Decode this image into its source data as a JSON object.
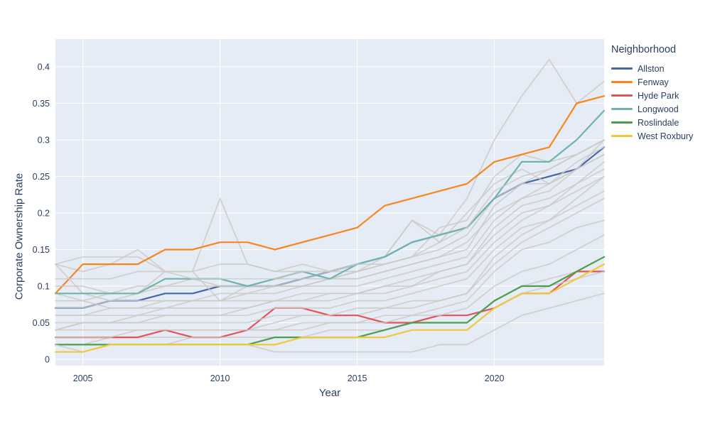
{
  "chart_data": {
    "type": "line",
    "title": "",
    "xlabel": "Year",
    "ylabel": "Corporate Ownership Rate",
    "legend_title": "Neighborhood",
    "plot_bg": "#e5ecf6",
    "grid_color": "#ffffff",
    "text_color": "#2a3f5f",
    "xlim": [
      2004,
      2024
    ],
    "ylim": [
      -0.009,
      0.438
    ],
    "x": [
      2004,
      2005,
      2006,
      2007,
      2008,
      2009,
      2010,
      2011,
      2012,
      2013,
      2014,
      2015,
      2016,
      2017,
      2018,
      2019,
      2020,
      2021,
      2022,
      2023,
      2024
    ],
    "x_tick_values": [
      2005,
      2010,
      2015,
      2020
    ],
    "x_tick_labels": [
      "2005",
      "2010",
      "2015",
      "2020"
    ],
    "y_tick_values": [
      0,
      0.05,
      0.1,
      0.15,
      0.2,
      0.25,
      0.3,
      0.35,
      0.4
    ],
    "y_tick_labels": [
      "0",
      "0.05",
      "0.1",
      "0.15",
      "0.2",
      "0.25",
      "0.3",
      "0.35",
      "0.4"
    ],
    "series": [
      {
        "name": "Allston",
        "color": "#4668a8",
        "values": [
          0.07,
          0.07,
          0.08,
          0.08,
          0.09,
          0.09,
          0.1,
          0.1,
          0.1,
          0.11,
          0.12,
          0.13,
          0.14,
          0.16,
          0.17,
          0.18,
          0.22,
          0.24,
          0.25,
          0.26,
          0.29
        ]
      },
      {
        "name": "Fenway",
        "color": "#f7871d",
        "values": [
          0.09,
          0.13,
          0.13,
          0.13,
          0.15,
          0.15,
          0.16,
          0.16,
          0.15,
          0.16,
          0.17,
          0.18,
          0.21,
          0.22,
          0.23,
          0.24,
          0.27,
          0.28,
          0.29,
          0.35,
          0.36
        ]
      },
      {
        "name": "Hyde Park",
        "color": "#e4535a",
        "values": [
          0.03,
          0.03,
          0.03,
          0.03,
          0.04,
          0.03,
          0.03,
          0.04,
          0.07,
          0.07,
          0.06,
          0.06,
          0.05,
          0.05,
          0.06,
          0.06,
          0.07,
          0.09,
          0.09,
          0.12,
          0.12
        ]
      },
      {
        "name": "Longwood",
        "color": "#6fb3ae",
        "values": [
          0.09,
          0.09,
          0.09,
          0.09,
          0.11,
          0.11,
          0.11,
          0.1,
          0.11,
          0.12,
          0.11,
          0.13,
          0.14,
          0.16,
          0.17,
          0.18,
          0.22,
          0.27,
          0.27,
          0.3,
          0.34
        ]
      },
      {
        "name": "Roslindale",
        "color": "#4d9e4a",
        "values": [
          0.02,
          0.02,
          0.02,
          0.02,
          0.02,
          0.02,
          0.02,
          0.02,
          0.03,
          0.03,
          0.03,
          0.03,
          0.04,
          0.05,
          0.05,
          0.05,
          0.08,
          0.1,
          0.1,
          0.12,
          0.14
        ]
      },
      {
        "name": "West Roxbury",
        "color": "#f2c83b",
        "values": [
          0.01,
          0.01,
          0.02,
          0.02,
          0.02,
          0.02,
          0.02,
          0.02,
          0.02,
          0.03,
          0.03,
          0.03,
          0.03,
          0.04,
          0.04,
          0.04,
          0.07,
          0.09,
          0.09,
          0.11,
          0.13
        ]
      }
    ],
    "others": {
      "color": "#cbc8c2",
      "series": [
        [
          0.13,
          0.12,
          0.13,
          0.15,
          0.12,
          0.12,
          0.22,
          0.13,
          0.12,
          0.13,
          0.12,
          0.13,
          0.14,
          0.19,
          0.17,
          0.22,
          0.3,
          0.36,
          0.41,
          0.35,
          0.38
        ],
        [
          0.13,
          0.14,
          0.14,
          0.14,
          0.12,
          0.12,
          0.13,
          0.13,
          0.12,
          0.12,
          0.11,
          0.12,
          0.13,
          0.14,
          0.18,
          0.19,
          0.25,
          0.28,
          0.27,
          0.28,
          0.3
        ],
        [
          0.09,
          0.08,
          0.09,
          0.1,
          0.1,
          0.11,
          0.1,
          0.1,
          0.11,
          0.11,
          0.12,
          0.12,
          0.13,
          0.14,
          0.15,
          0.17,
          0.22,
          0.24,
          0.24,
          0.26,
          0.3
        ],
        [
          0.04,
          0.05,
          0.05,
          0.05,
          0.06,
          0.06,
          0.06,
          0.07,
          0.08,
          0.08,
          0.08,
          0.09,
          0.09,
          0.1,
          0.12,
          0.13,
          0.18,
          0.21,
          0.22,
          0.24,
          0.26
        ],
        [
          0.02,
          0.02,
          0.03,
          0.03,
          0.03,
          0.03,
          0.03,
          0.04,
          0.04,
          0.05,
          0.05,
          0.05,
          0.06,
          0.06,
          0.07,
          0.08,
          0.12,
          0.15,
          0.16,
          0.18,
          0.19
        ],
        [
          0.04,
          0.04,
          0.04,
          0.04,
          0.04,
          0.04,
          0.04,
          0.04,
          0.05,
          0.06,
          0.06,
          0.06,
          0.07,
          0.08,
          0.08,
          0.09,
          0.13,
          0.16,
          0.18,
          0.2,
          0.22
        ],
        [
          0.06,
          0.06,
          0.07,
          0.07,
          0.08,
          0.08,
          0.08,
          0.09,
          0.1,
          0.1,
          0.11,
          0.12,
          0.14,
          0.19,
          0.16,
          0.2,
          0.24,
          0.26,
          0.24,
          0.26,
          0.28
        ],
        [
          0.02,
          0.02,
          0.02,
          0.02,
          0.02,
          0.03,
          0.03,
          0.03,
          0.03,
          0.03,
          0.04,
          0.04,
          0.04,
          0.05,
          0.05,
          0.05,
          0.08,
          0.1,
          0.11,
          0.12,
          0.14
        ],
        [
          0.05,
          0.05,
          0.05,
          0.06,
          0.06,
          0.06,
          0.06,
          0.06,
          0.07,
          0.07,
          0.07,
          0.08,
          0.08,
          0.09,
          0.1,
          0.11,
          0.15,
          0.18,
          0.19,
          0.22,
          0.25
        ],
        [
          0.1,
          0.1,
          0.09,
          0.09,
          0.1,
          0.1,
          0.1,
          0.1,
          0.1,
          0.11,
          0.11,
          0.11,
          0.12,
          0.13,
          0.14,
          0.16,
          0.2,
          0.22,
          0.23,
          0.26,
          0.28
        ],
        [
          0.07,
          0.07,
          0.08,
          0.08,
          0.08,
          0.08,
          0.09,
          0.09,
          0.09,
          0.1,
          0.1,
          0.1,
          0.11,
          0.12,
          0.13,
          0.14,
          0.19,
          0.22,
          0.24,
          0.27,
          0.29
        ],
        [
          0.13,
          0.09,
          0.08,
          0.09,
          0.12,
          0.12,
          0.08,
          0.1,
          0.1,
          0.1,
          0.11,
          0.11,
          0.12,
          0.13,
          0.14,
          0.15,
          0.21,
          0.24,
          0.26,
          0.28,
          0.3
        ],
        [
          0.03,
          0.03,
          0.03,
          0.04,
          0.04,
          0.04,
          0.04,
          0.04,
          0.04,
          0.04,
          0.05,
          0.05,
          0.05,
          0.06,
          0.06,
          0.07,
          0.1,
          0.12,
          0.13,
          0.15,
          0.17
        ],
        [
          0.08,
          0.08,
          0.07,
          0.07,
          0.07,
          0.08,
          0.08,
          0.08,
          0.08,
          0.09,
          0.09,
          0.09,
          0.1,
          0.11,
          0.12,
          0.13,
          0.17,
          0.2,
          0.21,
          0.23,
          0.25
        ],
        [
          0.06,
          0.06,
          0.06,
          0.06,
          0.07,
          0.07,
          0.07,
          0.07,
          0.08,
          0.08,
          0.09,
          0.09,
          0.1,
          0.1,
          0.11,
          0.12,
          0.16,
          0.19,
          0.21,
          0.24,
          0.27
        ],
        [
          0.02,
          0.02,
          0.02,
          0.02,
          0.02,
          0.02,
          0.02,
          0.02,
          0.03,
          0.03,
          0.03,
          0.03,
          0.03,
          0.04,
          0.04,
          0.04,
          0.07,
          0.09,
          0.1,
          0.11,
          0.12
        ],
        [
          0.04,
          0.05,
          0.05,
          0.05,
          0.05,
          0.05,
          0.05,
          0.05,
          0.06,
          0.06,
          0.06,
          0.07,
          0.07,
          0.07,
          0.08,
          0.09,
          0.14,
          0.17,
          0.19,
          0.21,
          0.23
        ],
        [
          0.11,
          0.11,
          0.11,
          0.12,
          0.12,
          0.11,
          0.11,
          0.11,
          0.11,
          0.12,
          0.12,
          0.13,
          0.13,
          0.14,
          0.16,
          0.18,
          0.23,
          0.25,
          0.26,
          0.28,
          0.3
        ],
        [
          0.02,
          0.01,
          0.02,
          0.02,
          0.02,
          0.02,
          0.02,
          0.02,
          0.01,
          0.01,
          0.01,
          0.01,
          0.01,
          0.01,
          0.02,
          0.02,
          0.04,
          0.06,
          0.07,
          0.08,
          0.09
        ]
      ]
    }
  }
}
